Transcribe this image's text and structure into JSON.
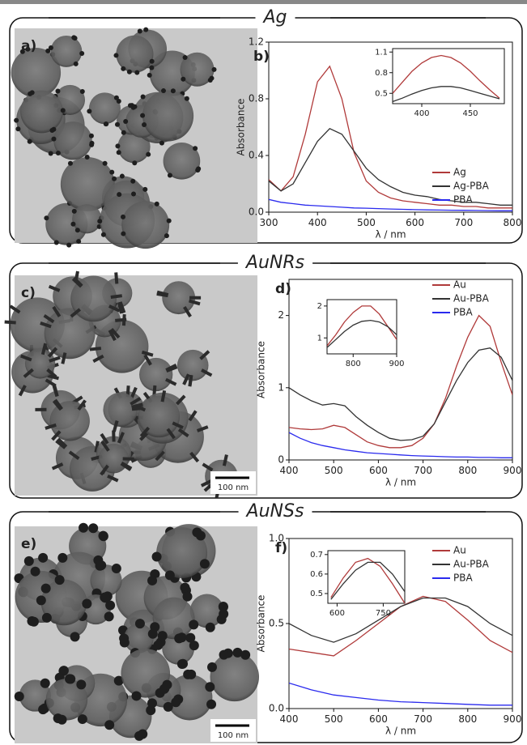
{
  "panels": [
    {
      "title": "Ag",
      "image_label": "a)"
    },
    {
      "title": "AuNRs",
      "image_label": "c)",
      "scale_bar": "100 nm"
    },
    {
      "title": "AuNSs",
      "image_label": "e)",
      "scale_bar": "100 nm"
    }
  ],
  "chart_data": [
    {
      "type": "line",
      "label": "b)",
      "x_label": "λ / nm",
      "y_label": "Absorbance",
      "x": [
        300,
        325,
        350,
        375,
        400,
        425,
        450,
        475,
        500,
        525,
        550,
        575,
        600,
        625,
        650,
        675,
        700,
        725,
        750,
        775,
        800
      ],
      "series": [
        {
          "name": "Ag",
          "color": "#b03a3a",
          "values": [
            0.23,
            0.15,
            0.25,
            0.55,
            0.92,
            1.03,
            0.8,
            0.42,
            0.22,
            0.14,
            0.1,
            0.08,
            0.07,
            0.06,
            0.05,
            0.05,
            0.04,
            0.04,
            0.03,
            0.03,
            0.03
          ]
        },
        {
          "name": "Ag-PBA",
          "color": "#333333",
          "values": [
            0.22,
            0.15,
            0.2,
            0.35,
            0.5,
            0.59,
            0.55,
            0.43,
            0.31,
            0.23,
            0.18,
            0.14,
            0.12,
            0.11,
            0.09,
            0.08,
            0.07,
            0.07,
            0.06,
            0.05,
            0.05
          ]
        },
        {
          "name": "PBA",
          "color": "#2a2aee",
          "values": [
            0.09,
            0.07,
            0.06,
            0.05,
            0.045,
            0.04,
            0.035,
            0.03,
            0.028,
            0.025,
            0.022,
            0.02,
            0.018,
            0.016,
            0.015,
            0.014,
            0.013,
            0.012,
            0.011,
            0.01,
            0.01
          ]
        }
      ],
      "xlim": [
        300,
        800
      ],
      "xticks": [
        300,
        400,
        500,
        600,
        700,
        800
      ],
      "ylim": [
        0,
        1.2
      ],
      "yticks": [
        {
          "value": 0,
          "label": "0.0"
        },
        0.4,
        0.8,
        1.2
      ]
    },
    {
      "type": "line",
      "inset": true,
      "x": [
        370,
        380,
        390,
        400,
        410,
        420,
        430,
        440,
        450,
        460,
        470,
        480
      ],
      "series": [
        {
          "color": "#b03a3a",
          "values": [
            0.5,
            0.66,
            0.82,
            0.94,
            1.02,
            1.05,
            1.02,
            0.94,
            0.82,
            0.68,
            0.55,
            0.43
          ]
        },
        {
          "color": "#333333",
          "values": [
            0.38,
            0.43,
            0.49,
            0.54,
            0.58,
            0.6,
            0.6,
            0.58,
            0.54,
            0.5,
            0.46,
            0.42
          ]
        }
      ],
      "xlim": [
        370,
        485
      ],
      "xticks": [
        400,
        450
      ],
      "ylim": [
        0.35,
        1.15
      ],
      "yticks": [
        0.5,
        0.8,
        1.1
      ]
    },
    {
      "type": "line",
      "label": "d)",
      "x_label": "λ / nm",
      "y_label": "Absorbance",
      "x": [
        400,
        425,
        450,
        475,
        500,
        525,
        550,
        575,
        600,
        625,
        650,
        675,
        700,
        725,
        750,
        775,
        800,
        825,
        850,
        875,
        900
      ],
      "series": [
        {
          "name": "Au",
          "color": "#b03a3a",
          "values": [
            0.45,
            0.43,
            0.42,
            0.43,
            0.48,
            0.45,
            0.35,
            0.25,
            0.2,
            0.17,
            0.17,
            0.2,
            0.3,
            0.5,
            0.85,
            1.3,
            1.7,
            2.0,
            1.85,
            1.35,
            0.9
          ]
        },
        {
          "name": "Au-PBA",
          "color": "#333333",
          "values": [
            1.0,
            0.9,
            0.82,
            0.76,
            0.78,
            0.75,
            0.6,
            0.48,
            0.38,
            0.3,
            0.27,
            0.28,
            0.33,
            0.5,
            0.8,
            1.1,
            1.35,
            1.52,
            1.55,
            1.42,
            1.1
          ]
        },
        {
          "name": "PBA",
          "color": "#2a2aee",
          "values": [
            0.38,
            0.3,
            0.24,
            0.2,
            0.17,
            0.14,
            0.12,
            0.1,
            0.09,
            0.08,
            0.07,
            0.06,
            0.055,
            0.05,
            0.045,
            0.04,
            0.04,
            0.035,
            0.035,
            0.03,
            0.03
          ]
        }
      ],
      "xlim": [
        400,
        900
      ],
      "xticks": [
        400,
        500,
        600,
        700,
        800,
        900
      ],
      "ylim": [
        0,
        2.5
      ],
      "yticks": [
        0,
        1,
        2
      ]
    },
    {
      "type": "line",
      "inset": true,
      "x": [
        740,
        760,
        780,
        800,
        820,
        840,
        860,
        880,
        900
      ],
      "series": [
        {
          "color": "#b03a3a",
          "values": [
            0.75,
            1.1,
            1.5,
            1.8,
            2.0,
            2.0,
            1.75,
            1.35,
            0.95
          ]
        },
        {
          "color": "#333333",
          "values": [
            0.7,
            0.95,
            1.2,
            1.4,
            1.52,
            1.55,
            1.5,
            1.35,
            1.1
          ]
        }
      ],
      "xlim": [
        740,
        900
      ],
      "xticks": [
        800,
        900
      ],
      "ylim": [
        0.5,
        2.2
      ],
      "yticks": [
        1,
        2
      ]
    },
    {
      "type": "line",
      "label": "f)",
      "x_label": "λ / nm",
      "y_label": "Absorbance",
      "x": [
        400,
        450,
        500,
        550,
        600,
        650,
        700,
        750,
        800,
        850,
        900
      ],
      "series": [
        {
          "name": "Au",
          "color": "#b03a3a",
          "values": [
            0.35,
            0.33,
            0.31,
            0.4,
            0.5,
            0.6,
            0.66,
            0.63,
            0.52,
            0.4,
            0.33
          ]
        },
        {
          "name": "Au-PBA",
          "color": "#333333",
          "values": [
            0.5,
            0.43,
            0.39,
            0.44,
            0.52,
            0.6,
            0.65,
            0.65,
            0.6,
            0.5,
            0.43
          ]
        },
        {
          "name": "PBA",
          "color": "#2a2aee",
          "values": [
            0.15,
            0.11,
            0.08,
            0.065,
            0.05,
            0.04,
            0.035,
            0.03,
            0.025,
            0.02,
            0.02
          ]
        }
      ],
      "xlim": [
        400,
        900
      ],
      "xticks": [
        400,
        500,
        600,
        700,
        800,
        900
      ],
      "ylim": [
        0,
        1.0
      ],
      "yticks": [
        {
          "value": 0,
          "label": "0.0"
        },
        0.5,
        {
          "value": 1,
          "label": "1.0"
        }
      ]
    },
    {
      "type": "line",
      "inset": true,
      "x": [
        580,
        620,
        660,
        700,
        740,
        780,
        820
      ],
      "series": [
        {
          "color": "#b03a3a",
          "values": [
            0.48,
            0.58,
            0.66,
            0.68,
            0.64,
            0.55,
            0.45
          ]
        },
        {
          "color": "#333333",
          "values": [
            0.47,
            0.55,
            0.62,
            0.66,
            0.66,
            0.6,
            0.51
          ]
        }
      ],
      "xlim": [
        570,
        820
      ],
      "xticks": [
        600,
        750
      ],
      "ylim": [
        0.45,
        0.72
      ],
      "yticks": [
        0.5,
        0.6,
        0.7
      ]
    }
  ]
}
